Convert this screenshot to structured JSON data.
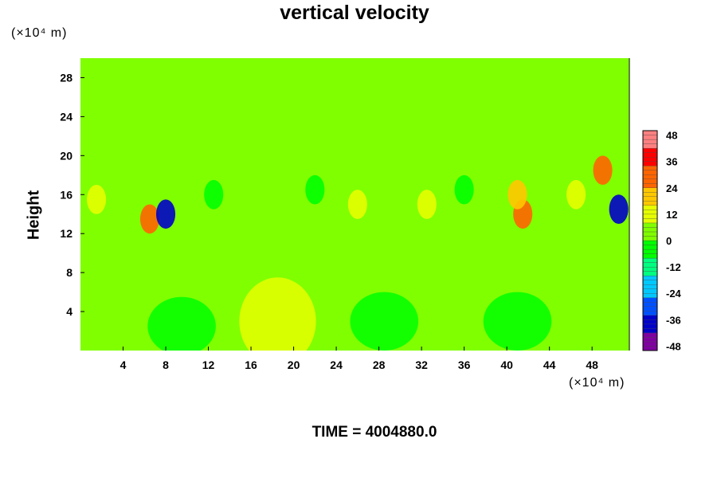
{
  "chart_data": {
    "type": "heatmap",
    "title": "vertical velocity",
    "ylabel": "Height",
    "xlabel": "",
    "x_unit_label": "(×10⁴ m)",
    "y_unit_label": "(×10⁴ m)",
    "xlim": [
      0,
      51.5
    ],
    "ylim": [
      0,
      30
    ],
    "x_ticks": [
      4,
      8,
      12,
      16,
      20,
      24,
      28,
      32,
      36,
      40,
      44,
      48
    ],
    "y_ticks": [
      4,
      8,
      12,
      16,
      20,
      24,
      28
    ],
    "colorbar": {
      "range": [
        -50,
        50
      ],
      "ticks": [
        48,
        36,
        24,
        12,
        0,
        -12,
        -24,
        -36,
        -48
      ],
      "colors": [
        "#7f00a0",
        "#0000c8",
        "#0050ff",
        "#00c8ff",
        "#00ff80",
        "#00ff00",
        "#80ff00",
        "#e6ff00",
        "#ffc800",
        "#ff6400",
        "#ff0000",
        "#ff8080"
      ]
    },
    "background_value": 0,
    "features": [
      {
        "kind": "updraft_dome",
        "x": 3.5,
        "y": 3,
        "value": 8
      },
      {
        "kind": "updraft_dome",
        "x": 18.5,
        "y": 3,
        "value": 9
      },
      {
        "kind": "updraft_dome",
        "x": 36.5,
        "y": 3,
        "value": 8
      },
      {
        "kind": "updraft_dome",
        "x": 44.5,
        "y": 6,
        "value": 5
      },
      {
        "kind": "downdraft",
        "x": 9.5,
        "y": 2.5,
        "value": -7
      },
      {
        "kind": "downdraft",
        "x": 28.5,
        "y": 3,
        "value": -7
      },
      {
        "kind": "downdraft",
        "x": 41,
        "y": 3,
        "value": -5
      },
      {
        "kind": "cell",
        "x": 6.5,
        "y": 13.5,
        "value": 28
      },
      {
        "kind": "cell",
        "x": 8,
        "y": 14,
        "value": -40
      },
      {
        "kind": "cell",
        "x": 1.5,
        "y": 15.5,
        "value": 12
      },
      {
        "kind": "cell",
        "x": 26,
        "y": 15,
        "value": 12
      },
      {
        "kind": "cell",
        "x": 32.5,
        "y": 15,
        "value": 12
      },
      {
        "kind": "cell",
        "x": 41.5,
        "y": 14,
        "value": 25
      },
      {
        "kind": "cell",
        "x": 41,
        "y": 16,
        "value": 20
      },
      {
        "kind": "cell",
        "x": 46.5,
        "y": 16,
        "value": 14
      },
      {
        "kind": "cell",
        "x": 49,
        "y": 18.5,
        "value": 30
      },
      {
        "kind": "cell",
        "x": 50.5,
        "y": 14.5,
        "value": -38
      },
      {
        "kind": "cell",
        "x": 12.5,
        "y": 16,
        "value": -8
      },
      {
        "kind": "cell",
        "x": 22,
        "y": 16.5,
        "value": -8
      },
      {
        "kind": "cell",
        "x": 36,
        "y": 16.5,
        "value": -8
      }
    ]
  },
  "footer": {
    "time_label": "TIME = 4004880.0"
  }
}
